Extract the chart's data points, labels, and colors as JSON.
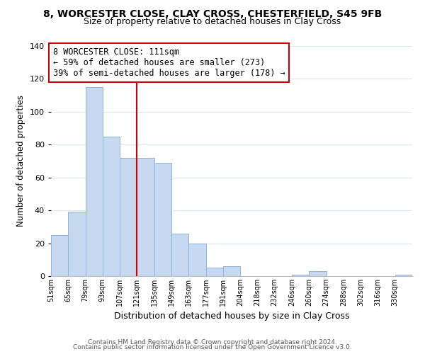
{
  "title": "8, WORCESTER CLOSE, CLAY CROSS, CHESTERFIELD, S45 9FB",
  "subtitle": "Size of property relative to detached houses in Clay Cross",
  "xlabel": "Distribution of detached houses by size in Clay Cross",
  "ylabel": "Number of detached properties",
  "bar_color": "#c6d9f0",
  "bar_edge_color": "#8fb4d9",
  "bin_labels": [
    "51sqm",
    "65sqm",
    "79sqm",
    "93sqm",
    "107sqm",
    "121sqm",
    "135sqm",
    "149sqm",
    "163sqm",
    "177sqm",
    "191sqm",
    "204sqm",
    "218sqm",
    "232sqm",
    "246sqm",
    "260sqm",
    "274sqm",
    "288sqm",
    "302sqm",
    "316sqm",
    "330sqm"
  ],
  "bar_heights": [
    25,
    39,
    115,
    85,
    72,
    72,
    69,
    26,
    20,
    5,
    6,
    0,
    0,
    0,
    1,
    3,
    0,
    0,
    0,
    0,
    1
  ],
  "vline_x": 5.0,
  "vline_color": "#cc0000",
  "annotation_text": "8 WORCESTER CLOSE: 111sqm\n← 59% of detached houses are smaller (273)\n39% of semi-detached houses are larger (178) →",
  "annotation_box_color": "#ffffff",
  "annotation_box_edge": "#cc0000",
  "ylim": [
    0,
    140
  ],
  "yticks": [
    0,
    20,
    40,
    60,
    80,
    100,
    120,
    140
  ],
  "footer_line1": "Contains HM Land Registry data © Crown copyright and database right 2024.",
  "footer_line2": "Contains public sector information licensed under the Open Government Licence v3.0.",
  "background_color": "#ffffff",
  "grid_color": "#d8e8f5"
}
